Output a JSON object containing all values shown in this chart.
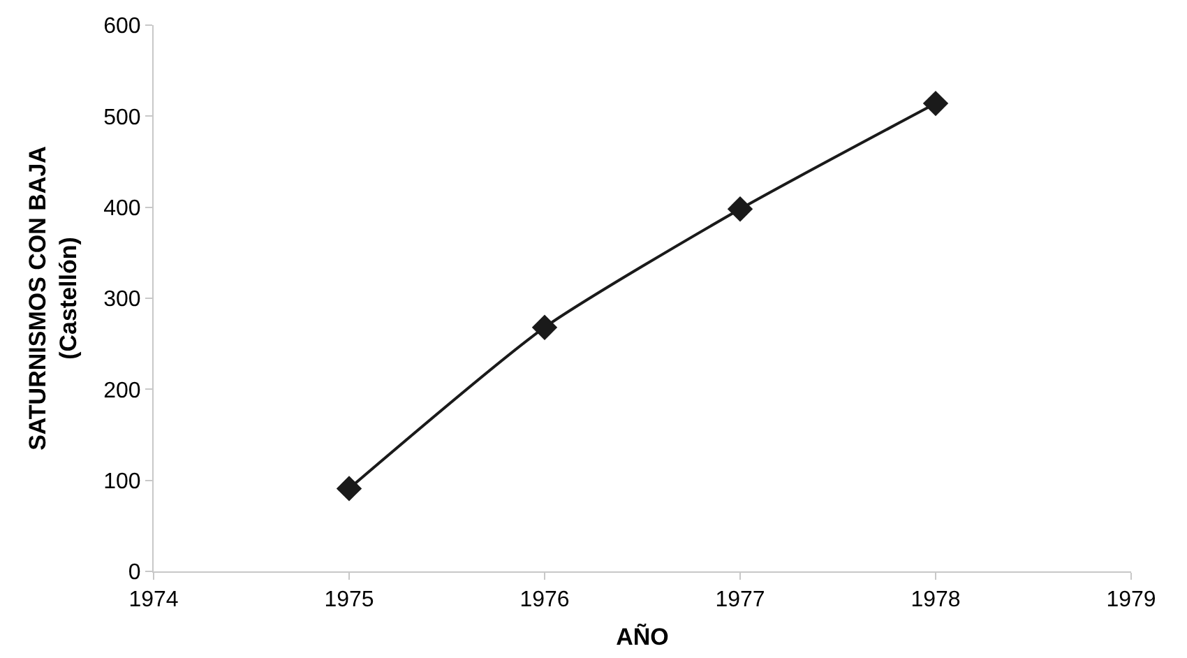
{
  "chart_data": {
    "type": "line",
    "xlabel": "AÑO",
    "ylabel": "SATURNISMOS CON BAJA\n(Castellón)",
    "x": [
      1975,
      1976,
      1977,
      1978
    ],
    "series": [
      {
        "color": "#1a1a1a",
        "values": [
          91,
          268,
          398,
          514
        ]
      }
    ],
    "xlim": [
      1974,
      1979
    ],
    "xticks": [
      1974,
      1975,
      1976,
      1977,
      1978,
      1979
    ],
    "ylim": [
      0,
      600
    ],
    "yticks": [
      0,
      100,
      200,
      300,
      400,
      500,
      600
    ],
    "grid": false,
    "marker": "diamond",
    "line_style": "solid"
  }
}
